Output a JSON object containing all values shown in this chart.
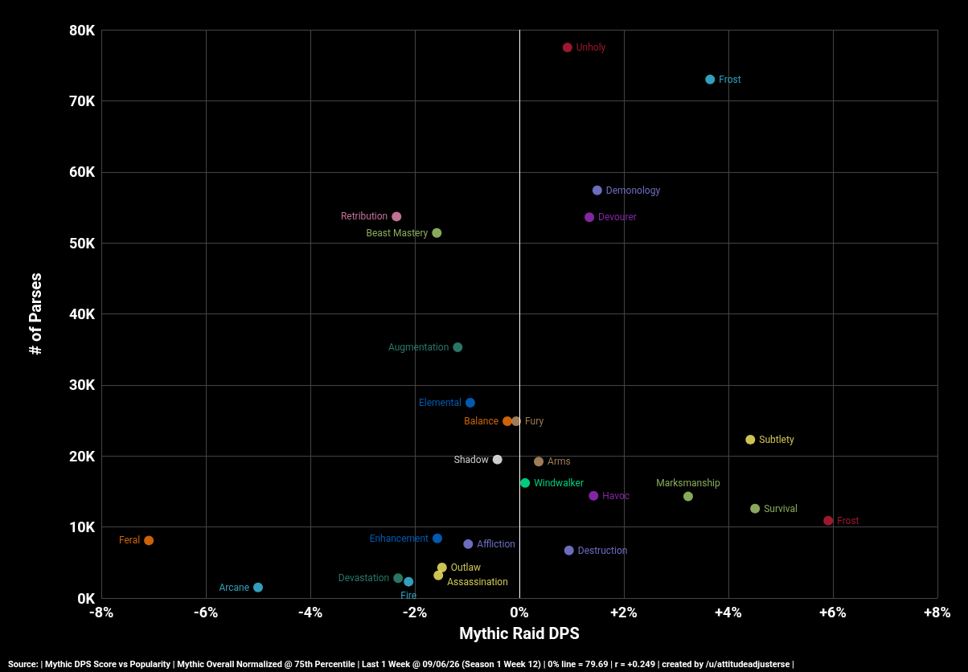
{
  "chart_data": {
    "type": "scatter",
    "xlabel": "Mythic Raid DPS",
    "ylabel": "# of Parses",
    "xlim": [
      -8,
      8
    ],
    "xticks": [
      {
        "value": -8,
        "label": "-8%"
      },
      {
        "value": -6,
        "label": "-6%"
      },
      {
        "value": -4,
        "label": "-4%"
      },
      {
        "value": -2,
        "label": "-2%"
      },
      {
        "value": 0,
        "label": "0%"
      },
      {
        "value": 2,
        "label": "+2%"
      },
      {
        "value": 4,
        "label": "+4%"
      },
      {
        "value": 6,
        "label": "+6%"
      },
      {
        "value": 8,
        "label": "+8%"
      }
    ],
    "ylim": [
      0,
      80
    ],
    "yticks": [
      {
        "value": 0,
        "label": "0K"
      },
      {
        "value": 10,
        "label": "10K"
      },
      {
        "value": 20,
        "label": "20K"
      },
      {
        "value": 30,
        "label": "30K"
      },
      {
        "value": 40,
        "label": "40K"
      },
      {
        "value": 50,
        "label": "50K"
      },
      {
        "value": 60,
        "label": "60K"
      },
      {
        "value": 70,
        "label": "70K"
      },
      {
        "value": 80,
        "label": "80K"
      }
    ],
    "grid": true,
    "legend": false,
    "marker": "circle",
    "ref_lines": [
      {
        "axis": "x",
        "value": 0,
        "color": "#ffffff"
      }
    ],
    "annotations": [
      "Source: | Mythic DPS Score vs Popularity | Mythic Overall Normalized @ 75th Percentile | Last 1 Week @ 09/06/26 (Season 1 Week 12) | 0% line = 79.69 | r = +0.249 | created by /u/attitudeadjusterse |"
    ],
    "series": [
      {
        "name": "Unholy",
        "color": "#c41e3a",
        "x": [
          0.92
        ],
        "values": [
          77.5
        ]
      },
      {
        "name": "Frost",
        "color": "#3fc7eb",
        "x": [
          3.65
        ],
        "values": [
          73.0
        ]
      },
      {
        "name": "Demonology",
        "color": "#8788ee",
        "x": [
          1.49
        ],
        "values": [
          57.4
        ]
      },
      {
        "name": "Devourer",
        "color": "#a330c9",
        "x": [
          1.34
        ],
        "values": [
          53.6
        ]
      },
      {
        "name": "Retribution",
        "color": "#f48cba",
        "x": [
          -2.35
        ],
        "values": [
          53.7
        ]
      },
      {
        "name": "Beast Mastery",
        "color": "#aad372",
        "x": [
          -1.58
        ],
        "values": [
          51.4
        ]
      },
      {
        "name": "Augmentation",
        "color": "#33937f",
        "x": [
          -1.18
        ],
        "values": [
          35.3
        ]
      },
      {
        "name": "Elemental",
        "color": "#0070dd",
        "x": [
          -0.94
        ],
        "values": [
          27.5
        ]
      },
      {
        "name": "Balance",
        "color": "#ff7c0a",
        "x": [
          -0.23
        ],
        "values": [
          24.9
        ]
      },
      {
        "name": "Fury",
        "color": "#c69b6d",
        "x": [
          -0.06
        ],
        "values": [
          24.9
        ]
      },
      {
        "name": "Subtlety",
        "color": "#fff468",
        "x": [
          4.42
        ],
        "values": [
          22.3
        ]
      },
      {
        "name": "Shadow",
        "color": "#ffffff",
        "x": [
          -0.42
        ],
        "values": [
          19.5
        ]
      },
      {
        "name": "Arms",
        "color": "#c69b6d",
        "x": [
          0.37
        ],
        "values": [
          19.2
        ]
      },
      {
        "name": "Windwalker",
        "color": "#00ff98",
        "x": [
          0.11
        ],
        "values": [
          16.2
        ]
      },
      {
        "name": "Havoc",
        "color": "#a330c9",
        "x": [
          1.42
        ],
        "values": [
          14.4
        ]
      },
      {
        "name": "Marksmanship",
        "color": "#aad372",
        "x": [
          3.23
        ],
        "values": [
          14.3
        ]
      },
      {
        "name": "Survival",
        "color": "#aad372",
        "x": [
          4.51
        ],
        "values": [
          12.6
        ]
      },
      {
        "name": "Frost",
        "color": "#c41e3a",
        "x": [
          5.91
        ],
        "values": [
          10.9
        ]
      },
      {
        "name": "Feral",
        "color": "#ff7c0a",
        "x": [
          -7.09
        ],
        "values": [
          8.1
        ]
      },
      {
        "name": "Enhancement",
        "color": "#0070dd",
        "x": [
          -1.57
        ],
        "values": [
          8.4
        ]
      },
      {
        "name": "Affliction",
        "color": "#8788ee",
        "x": [
          -0.98
        ],
        "values": [
          7.6
        ]
      },
      {
        "name": "Destruction",
        "color": "#8788ee",
        "x": [
          0.95
        ],
        "values": [
          6.7
        ]
      },
      {
        "name": "Outlaw",
        "color": "#fff468",
        "x": [
          -1.48
        ],
        "values": [
          4.3
        ]
      },
      {
        "name": "Assassination",
        "color": "#fff468",
        "x": [
          -1.55
        ],
        "values": [
          3.2
        ]
      },
      {
        "name": "Devastation",
        "color": "#33937f",
        "x": [
          -2.32
        ],
        "values": [
          2.8
        ]
      },
      {
        "name": "Fire",
        "color": "#3fc7eb",
        "x": [
          -2.12
        ],
        "values": [
          2.3
        ]
      },
      {
        "name": "Arcane",
        "color": "#3fc7eb",
        "x": [
          -5.0
        ],
        "values": [
          1.5
        ]
      }
    ]
  }
}
